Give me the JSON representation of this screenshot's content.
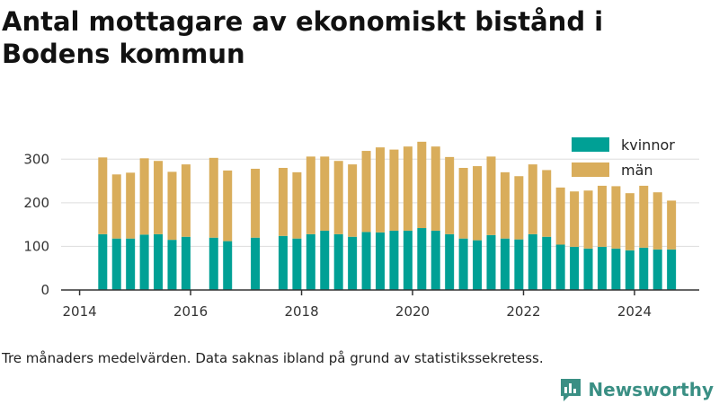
{
  "title": "Antal mottagare av ekonomiskt bistånd i Bodens kommun",
  "note": "Tre månaders medelvärden. Data saknas ibland på grund av statistikssekretess.",
  "brand": {
    "name": "Newsworthy",
    "logo_icon": "bar-chart-speech-bubble-icon"
  },
  "colors": {
    "kvinnor": "#00a095",
    "man": "#d9ad5b",
    "grid": "#dddddd",
    "axis": "#333333",
    "brand": "#3a8f84"
  },
  "chart_data": {
    "type": "bar",
    "stacked": true,
    "title": "Antal mottagare av ekonomiskt bistånd i Bodens kommun",
    "xlabel": "",
    "ylabel": "",
    "x_ticks": [
      "2014",
      "2016",
      "2018",
      "2020",
      "2022",
      "2024"
    ],
    "y_ticks": [
      0,
      100,
      200,
      300
    ],
    "ylim": [
      0,
      350
    ],
    "xlim": [
      "2013-09",
      "2025-03"
    ],
    "grid": true,
    "legend_position": "top-right",
    "x": [
      "2014-06",
      "2014-09",
      "2014-12",
      "2015-03",
      "2015-06",
      "2015-09",
      "2015-12",
      "2016-06",
      "2016-09",
      "2017-03",
      "2017-09",
      "2017-12",
      "2018-03",
      "2018-06",
      "2018-09",
      "2018-12",
      "2019-03",
      "2019-06",
      "2019-09",
      "2019-12",
      "2020-03",
      "2020-06",
      "2020-09",
      "2020-12",
      "2021-03",
      "2021-06",
      "2021-09",
      "2021-12",
      "2022-03",
      "2022-06",
      "2022-09",
      "2022-12",
      "2023-03",
      "2023-06",
      "2023-09",
      "2023-12",
      "2024-03",
      "2024-06",
      "2024-09"
    ],
    "series": [
      {
        "name": "kvinnor",
        "color": "#00a095",
        "values": [
          128,
          118,
          118,
          127,
          128,
          115,
          122,
          120,
          112,
          120,
          124,
          118,
          128,
          136,
          128,
          122,
          133,
          132,
          136,
          136,
          142,
          136,
          128,
          118,
          114,
          126,
          118,
          116,
          128,
          122,
          104,
          99,
          95,
          99,
          95,
          91,
          97,
          93,
          93
        ]
      },
      {
        "name": "män",
        "color": "#d9ad5b",
        "values": [
          176,
          147,
          151,
          175,
          168,
          156,
          166,
          183,
          162,
          158,
          156,
          152,
          178,
          170,
          168,
          166,
          186,
          195,
          186,
          193,
          198,
          193,
          177,
          162,
          170,
          180,
          152,
          145,
          160,
          153,
          131,
          127,
          133,
          140,
          143,
          131,
          142,
          131,
          112
        ]
      }
    ]
  }
}
